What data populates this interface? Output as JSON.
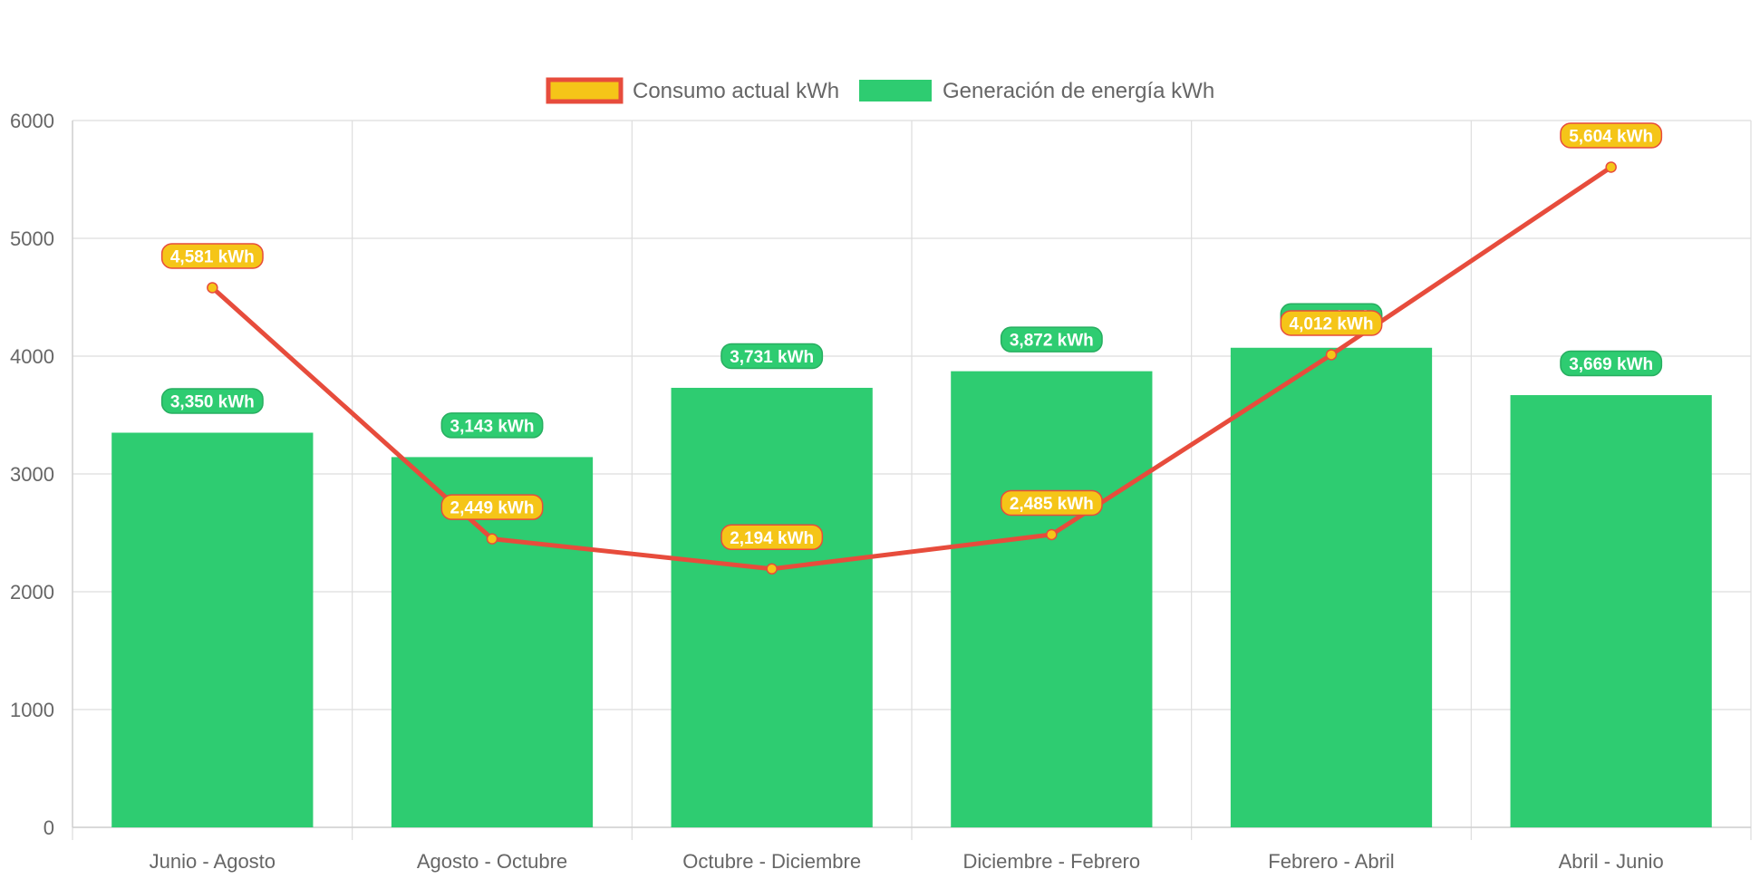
{
  "chart_data": {
    "type": "bar",
    "title": "",
    "xlabel": "",
    "ylabel": "",
    "ylim": [
      0,
      6000
    ],
    "yticks": [
      0,
      1000,
      2000,
      3000,
      4000,
      5000,
      6000
    ],
    "grid": true,
    "legend_position": "top",
    "categories": [
      "Junio - Agosto",
      "Agosto - Octubre",
      "Octubre - Diciembre",
      "Diciembre - Febrero",
      "Febrero - Abril",
      "Abril - Junio"
    ],
    "series": [
      {
        "name": "Consumo actual kWh",
        "type": "line",
        "values": [
          4581,
          2449,
          2194,
          2485,
          4012,
          5604
        ],
        "labels": [
          "4,581 kWh",
          "2,449 kWh",
          "2,194 kWh",
          "2,485 kWh",
          "4,012 kWh",
          "5,604 kWh"
        ],
        "color": "#e74c3c",
        "fill": "#f5c518"
      },
      {
        "name": "Generación de energía kWh",
        "type": "bar",
        "values": [
          3350,
          3143,
          3731,
          3872,
          4071,
          3669
        ],
        "labels": [
          "3,350 kWh",
          "3,143 kWh",
          "3,731 kWh",
          "3,872 kWh",
          "4,071 kWh",
          "3,669 kWh"
        ],
        "color": "#2ecc71",
        "border": "#27ae60"
      }
    ]
  }
}
